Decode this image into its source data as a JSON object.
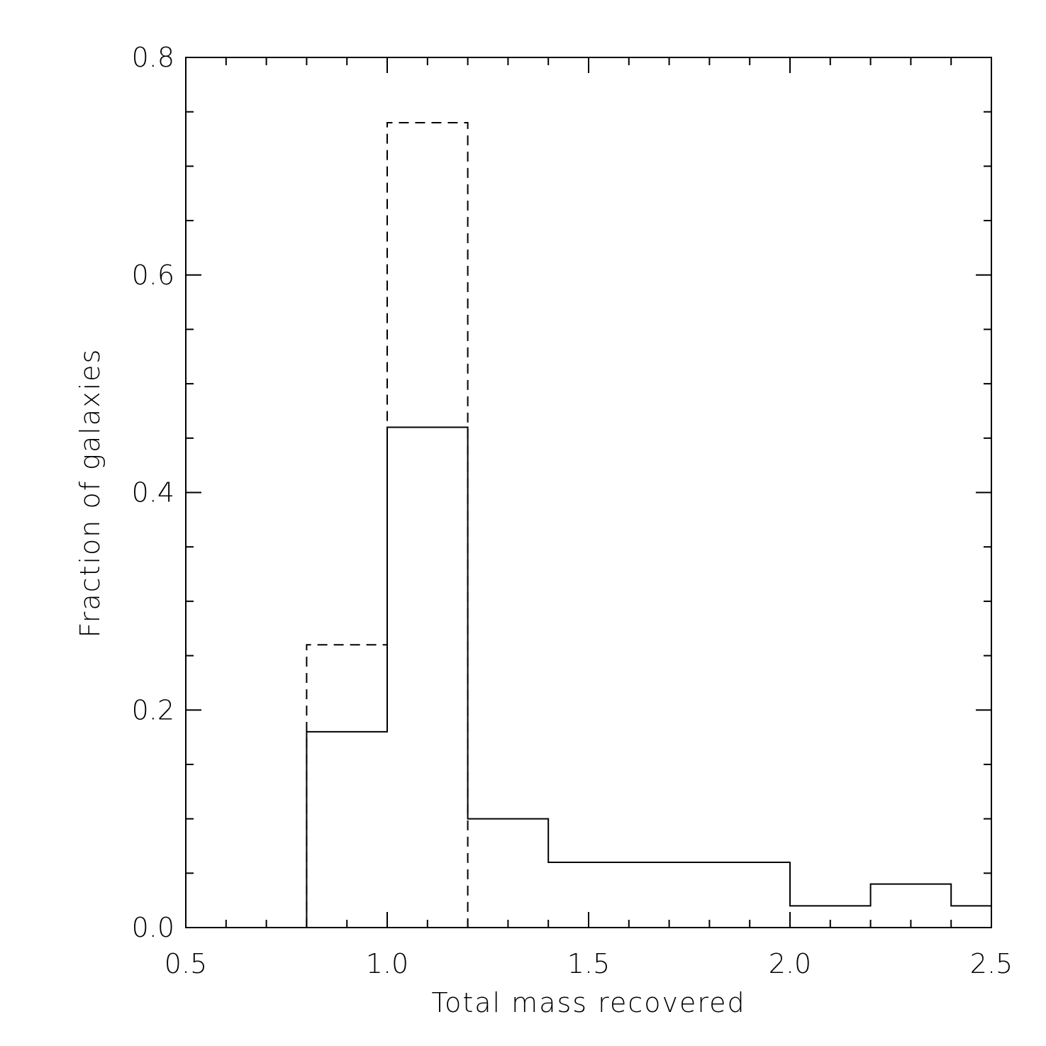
{
  "chart_data": {
    "type": "histogram",
    "title": "",
    "xlabel": "Total mass recovered",
    "ylabel": "Fraction of galaxies",
    "xlim": [
      0.5,
      2.5
    ],
    "ylim": [
      0.0,
      0.8
    ],
    "x_ticks": [
      "0.5",
      "1.0",
      "1.5",
      "2.0",
      "2.5"
    ],
    "y_ticks": [
      "0.0",
      "0.2",
      "0.4",
      "0.6",
      "0.8"
    ],
    "grid": false,
    "colors": {
      "line": "#000000",
      "background": "#ffffff"
    },
    "series": [
      {
        "line_style": "solid",
        "bin_edges": [
          0.8,
          1.0,
          1.2,
          1.4,
          1.6,
          1.8,
          2.0,
          2.2,
          2.4,
          2.5
        ],
        "values": [
          0.18,
          0.46,
          0.1,
          0.06,
          0.06,
          0.06,
          0.02,
          0.04,
          0.02
        ]
      },
      {
        "line_style": "dashed",
        "bin_edges": [
          0.8,
          1.0,
          1.2
        ],
        "values": [
          0.26,
          0.74
        ]
      }
    ]
  }
}
